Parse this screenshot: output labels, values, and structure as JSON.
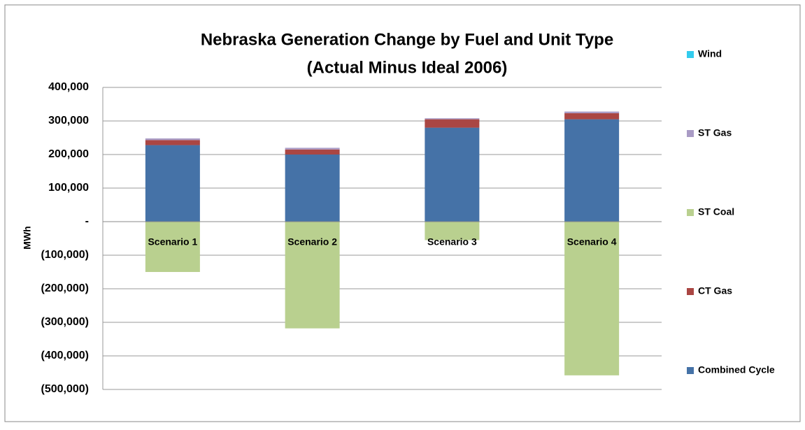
{
  "chart_data": {
    "type": "bar",
    "stacked": true,
    "title": "Nebraska Generation Change by Fuel and Unit Type",
    "subtitle": "(Actual Minus Ideal 2006)",
    "y_label": "MWh",
    "categories": [
      "Scenario 1",
      "Scenario 2",
      "Scenario 3",
      "Scenario 4"
    ],
    "series": [
      {
        "name": "Combined Cycle",
        "color": "#4572a7",
        "values": [
          228000,
          200000,
          280000,
          305000
        ]
      },
      {
        "name": "CT Gas",
        "color": "#aa4643",
        "values": [
          15000,
          15000,
          25000,
          18000
        ]
      },
      {
        "name": "ST Coal",
        "color": "#b9d08f",
        "values": [
          -150000,
          -318000,
          -55000,
          -458000
        ]
      },
      {
        "name": "ST Gas",
        "color": "#a99bc5",
        "values": [
          5000,
          5000,
          3000,
          5000
        ]
      },
      {
        "name": "Wind",
        "color": "#33ccee",
        "values": [
          0,
          0,
          0,
          0
        ]
      }
    ],
    "ylim": [
      -500000,
      400000
    ],
    "yticks": [
      {
        "value": 400000,
        "label": "400,000"
      },
      {
        "value": 300000,
        "label": "300,000"
      },
      {
        "value": 200000,
        "label": "200,000"
      },
      {
        "value": 100000,
        "label": "100,000"
      },
      {
        "value": 0,
        "label": "-"
      },
      {
        "value": -100000,
        "label": "(100,000)"
      },
      {
        "value": -200000,
        "label": "(200,000)"
      },
      {
        "value": -300000,
        "label": "(300,000)"
      },
      {
        "value": -400000,
        "label": "(400,000)"
      },
      {
        "value": -500000,
        "label": "(500,000)"
      }
    ],
    "grid": true,
    "legend": "right"
  }
}
